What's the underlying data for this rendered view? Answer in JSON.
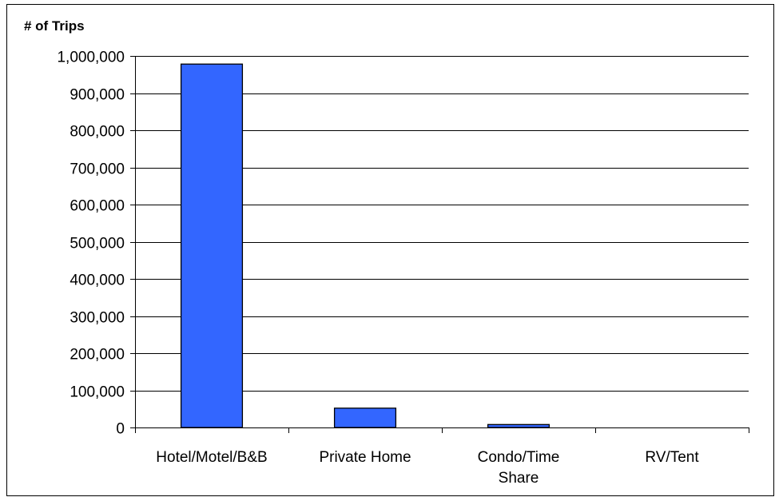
{
  "chart_data": {
    "type": "bar",
    "ylabel": "# of Trips",
    "categories": [
      [
        "Hotel/Motel/B&B"
      ],
      [
        "Private Home"
      ],
      [
        "Condo/Time",
        "Share"
      ],
      [
        "RV/Tent"
      ]
    ],
    "values": [
      978000,
      52000,
      8000,
      0
    ],
    "ylim": [
      0,
      1000000
    ],
    "yticks": [
      0,
      100000,
      200000,
      300000,
      400000,
      500000,
      600000,
      700000,
      800000,
      900000,
      1000000
    ],
    "ytick_labels": [
      "0",
      "100,000",
      "200,000",
      "300,000",
      "400,000",
      "500,000",
      "600,000",
      "700,000",
      "800,000",
      "900,000",
      "1,000,000"
    ],
    "grid": true,
    "legend": "none",
    "colors": {
      "bar_fill": "#3366ff",
      "bar_stroke": "#000000",
      "grid": "#000000"
    }
  }
}
